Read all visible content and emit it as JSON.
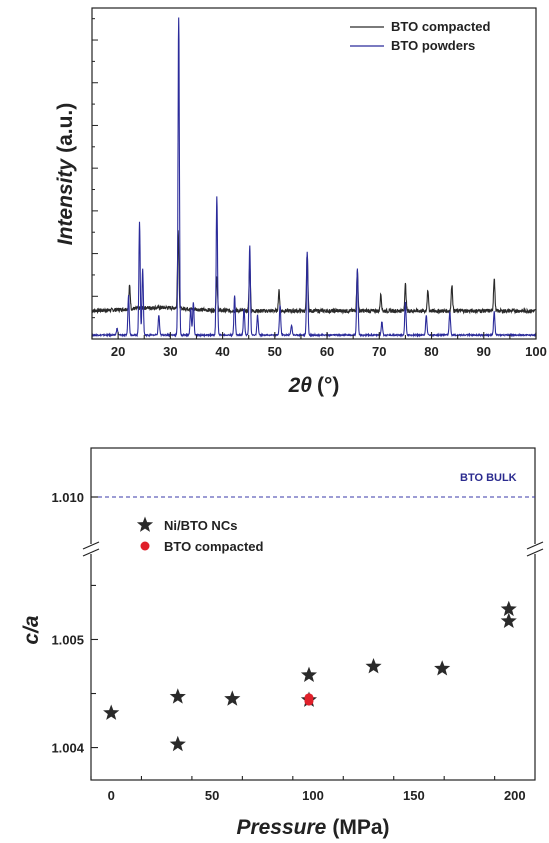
{
  "chart_data": [
    {
      "type": "line",
      "xlabel": "2θ (°)",
      "xlabel_italic": "2θ",
      "xlabel_unit": "(°)",
      "ylabel": "Intensity (a.u.)",
      "ylabel_italic": "Intensity",
      "ylabel_unit": "(a.u.)",
      "xlim": [
        15,
        100
      ],
      "xticks": [
        20,
        30,
        40,
        50,
        60,
        70,
        80,
        90,
        100
      ],
      "ylim": [
        0,
        1.0
      ],
      "legend_position": "top-right",
      "series": [
        {
          "name": "BTO compacted",
          "color": "#2a2a2a",
          "baseline": 0.085,
          "peaks": [
            [
              22.2,
              0.07
            ],
            [
              31.5,
              0.24
            ],
            [
              38.9,
              0.1
            ],
            [
              45.2,
              0.14
            ],
            [
              50.8,
              0.06
            ],
            [
              56.2,
              0.17
            ],
            [
              65.8,
              0.12
            ],
            [
              70.3,
              0.05
            ],
            [
              75.0,
              0.08
            ],
            [
              79.3,
              0.06
            ],
            [
              83.9,
              0.08
            ],
            [
              92.0,
              0.1
            ]
          ]
        },
        {
          "name": "BTO powders",
          "color": "#2b2b9a",
          "baseline": 0.012,
          "peaks": [
            [
              19.8,
              0.02
            ],
            [
              22.0,
              0.12
            ],
            [
              24.1,
              0.34
            ],
            [
              24.7,
              0.2
            ],
            [
              27.8,
              0.06
            ],
            [
              31.6,
              0.96
            ],
            [
              33.9,
              0.08
            ],
            [
              34.4,
              0.1
            ],
            [
              38.9,
              0.42
            ],
            [
              42.3,
              0.12
            ],
            [
              44.1,
              0.08
            ],
            [
              45.2,
              0.27
            ],
            [
              46.7,
              0.06
            ],
            [
              51.0,
              0.09
            ],
            [
              53.2,
              0.03
            ],
            [
              56.2,
              0.25
            ],
            [
              65.8,
              0.2
            ],
            [
              70.5,
              0.04
            ],
            [
              75.0,
              0.1
            ],
            [
              79.0,
              0.06
            ],
            [
              83.5,
              0.07
            ],
            [
              92.0,
              0.07
            ]
          ]
        }
      ]
    },
    {
      "type": "scatter",
      "xlabel": "Pressure (MPa)",
      "xlabel_italic": "Pressure",
      "xlabel_unit": "(MPa)",
      "ylabel": "c/a",
      "xlim": [
        -10,
        210
      ],
      "xticks": [
        0,
        50,
        100,
        150,
        200
      ],
      "ylim": [
        1.0037,
        1.0058
      ],
      "yticks": [
        1.004,
        1.005
      ],
      "ytick_labels": [
        "1.004",
        "1.005"
      ],
      "broken_axis": true,
      "upper_ytick_label": "1.010",
      "legend_position": "top-left",
      "reference_line": {
        "label": "BTO BULK",
        "value": 1.01,
        "color": "#3a3aa8"
      },
      "series": [
        {
          "name": "Ni/BTO NCs",
          "marker": "star",
          "color": "#2a2a2a",
          "points": [
            [
              0,
              1.00432
            ],
            [
              33,
              1.00447
            ],
            [
              33,
              1.00403
            ],
            [
              60,
              1.00445
            ],
            [
              98,
              1.00467
            ],
            [
              98,
              1.00444
            ],
            [
              130,
              1.00475
            ],
            [
              164,
              1.00473
            ],
            [
              197,
              1.00528
            ],
            [
              197,
              1.00517
            ]
          ]
        },
        {
          "name": "BTO compacted",
          "marker": "circle",
          "color": "#e0202a",
          "points": [
            [
              98,
              1.00446
            ],
            [
              98,
              1.00443
            ]
          ]
        }
      ]
    }
  ]
}
